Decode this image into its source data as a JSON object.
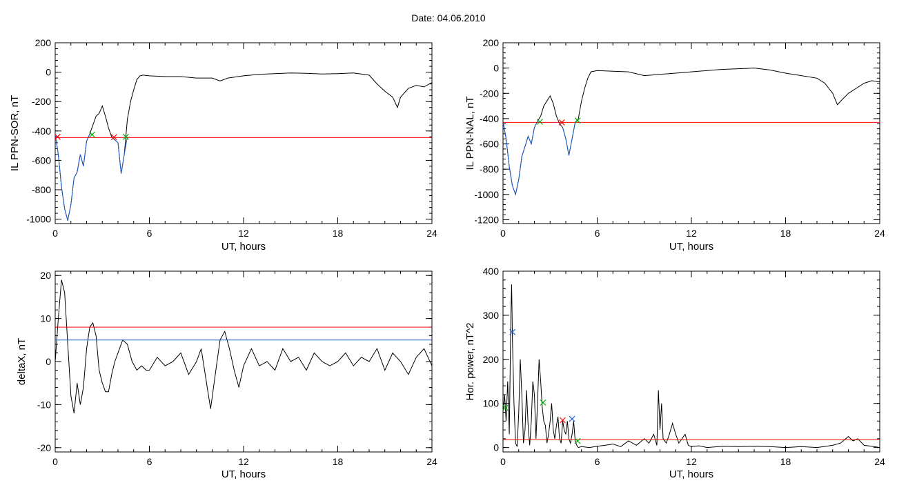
{
  "header": {
    "date_label": "Date:  04.06.2010"
  },
  "chart_data": [
    {
      "type": "line",
      "xlabel": "UT, hours",
      "ylabel": "IL PPN-SOR, nT",
      "xlim": [
        0,
        24
      ],
      "ylim": [
        -1030,
        200
      ],
      "xticks": [
        0,
        6,
        12,
        18,
        24
      ],
      "yticks": [
        -1000,
        -800,
        -600,
        -400,
        -200,
        0,
        200
      ],
      "series": [
        {
          "color": "#000000",
          "x": [
            0,
            0.2,
            0.4,
            0.6,
            0.8,
            1.0,
            1.2,
            1.4,
            1.6,
            1.8,
            2.0,
            2.2,
            2.4,
            2.6,
            2.8,
            3.0,
            3.2,
            3.4,
            3.6,
            3.8,
            4.0,
            4.2,
            4.4,
            4.6,
            4.8,
            5.0,
            5.2,
            5.4,
            5.6,
            6,
            7,
            8,
            9,
            10,
            10.5,
            11,
            12,
            13,
            14,
            15,
            16,
            17,
            18,
            19,
            20,
            20.5,
            21,
            21.5,
            21.8,
            22,
            22.5,
            23,
            23.5,
            24
          ],
          "y": [
            -420,
            -560,
            -780,
            -930,
            -1010,
            -900,
            -720,
            -680,
            -560,
            -640,
            -470,
            -420,
            -360,
            -300,
            -280,
            -230,
            -300,
            -380,
            -440,
            -460,
            -480,
            -690,
            -560,
            -320,
            -200,
            -120,
            -50,
            -25,
            -20,
            -25,
            -30,
            -30,
            -40,
            -40,
            -60,
            -40,
            -25,
            -15,
            -10,
            -5,
            -8,
            -12,
            -10,
            -5,
            -20,
            -80,
            -130,
            -170,
            -240,
            -170,
            -110,
            -90,
            -100,
            -70
          ]
        },
        {
          "color": "#1f5fd0",
          "x": [
            0,
            0.2,
            0.4,
            0.6,
            0.8,
            1.0,
            1.2,
            1.4,
            1.6,
            1.8,
            2.0,
            2.2,
            2.4
          ],
          "y": [
            -420,
            -560,
            -780,
            -930,
            -1010,
            -900,
            -720,
            -680,
            -560,
            -640,
            -470,
            -420,
            -420
          ]
        },
        {
          "color": "#1f5fd0",
          "x": [
            3.8,
            4.0,
            4.2,
            4.4,
            4.6
          ],
          "y": [
            -460,
            -480,
            -690,
            -560,
            -440
          ]
        },
        {
          "color": "#ff0000",
          "x": [
            0,
            24
          ],
          "y": [
            -445,
            -445
          ]
        }
      ],
      "markers": [
        {
          "x": 0.15,
          "y": -440,
          "color": "#ff0000"
        },
        {
          "x": 3.75,
          "y": -442,
          "color": "#ff0000"
        },
        {
          "x": 2.35,
          "y": -425,
          "color": "#00b000"
        },
        {
          "x": 4.5,
          "y": -440,
          "color": "#00b000"
        }
      ]
    },
    {
      "type": "line",
      "xlabel": "UT, hours",
      "ylabel": "IL PPN-NAL, nT",
      "xlim": [
        0,
        24
      ],
      "ylim": [
        -1230,
        200
      ],
      "xticks": [
        0,
        6,
        12,
        18,
        24
      ],
      "yticks": [
        -1200,
        -1000,
        -800,
        -600,
        -400,
        -200,
        0,
        200
      ],
      "series": [
        {
          "color": "#000000",
          "x": [
            0,
            0.2,
            0.4,
            0.6,
            0.8,
            1.0,
            1.2,
            1.4,
            1.6,
            1.8,
            2.0,
            2.2,
            2.4,
            2.6,
            2.8,
            3.0,
            3.2,
            3.4,
            3.6,
            3.8,
            4.0,
            4.2,
            4.4,
            4.6,
            4.8,
            5.0,
            5.2,
            5.4,
            5.6,
            6,
            7,
            8,
            9,
            10,
            11,
            12,
            13,
            14,
            15,
            16,
            17,
            18,
            19,
            20,
            20.5,
            21,
            21.3,
            21.6,
            22,
            22.5,
            23,
            23.5,
            24
          ],
          "y": [
            -420,
            -560,
            -780,
            -930,
            -1000,
            -880,
            -700,
            -620,
            -540,
            -600,
            -470,
            -420,
            -380,
            -300,
            -260,
            -220,
            -280,
            -380,
            -440,
            -470,
            -560,
            -690,
            -560,
            -430,
            -400,
            -260,
            -160,
            -80,
            -30,
            -20,
            -25,
            -30,
            -60,
            -50,
            -40,
            -30,
            -20,
            -10,
            -5,
            0,
            -15,
            -40,
            -60,
            -80,
            -120,
            -200,
            -290,
            -250,
            -200,
            -160,
            -120,
            -100,
            -110
          ]
        },
        {
          "color": "#1f5fd0",
          "x": [
            0,
            0.2,
            0.4,
            0.6,
            0.8,
            1.0,
            1.2,
            1.4,
            1.6,
            1.8,
            2.0,
            2.2,
            2.4
          ],
          "y": [
            -420,
            -560,
            -780,
            -930,
            -1000,
            -880,
            -700,
            -620,
            -540,
            -600,
            -470,
            -420,
            -420
          ]
        },
        {
          "color": "#1f5fd0",
          "x": [
            3.8,
            4.0,
            4.2,
            4.4,
            4.6,
            4.8
          ],
          "y": [
            -470,
            -560,
            -690,
            -560,
            -430,
            -400
          ]
        },
        {
          "color": "#ff0000",
          "x": [
            0,
            24
          ],
          "y": [
            -430,
            -430
          ]
        }
      ],
      "markers": [
        {
          "x": 3.75,
          "y": -430,
          "color": "#ff0000"
        },
        {
          "x": 2.35,
          "y": -425,
          "color": "#00b000"
        },
        {
          "x": 4.75,
          "y": -415,
          "color": "#00b000"
        }
      ]
    },
    {
      "type": "line",
      "xlabel": "UT, hours",
      "ylabel": "deltaX, nT",
      "xlim": [
        0,
        24
      ],
      "ylim": [
        -21,
        21
      ],
      "xticks": [
        0,
        6,
        12,
        18,
        24
      ],
      "yticks": [
        -20,
        -10,
        0,
        10,
        20
      ],
      "series": [
        {
          "color": "#000000",
          "x": [
            0,
            0.2,
            0.4,
            0.6,
            0.8,
            1.0,
            1.2,
            1.4,
            1.6,
            1.8,
            2.0,
            2.2,
            2.4,
            2.6,
            2.8,
            3.0,
            3.2,
            3.4,
            3.6,
            3.8,
            4.0,
            4.3,
            4.6,
            4.9,
            5.2,
            5.5,
            5.8,
            6.0,
            6.5,
            7,
            7.5,
            8,
            8.5,
            9,
            9.3,
            9.6,
            9.9,
            10.2,
            10.5,
            10.8,
            11.1,
            11.4,
            11.7,
            12,
            12.5,
            13,
            13.5,
            14,
            14.5,
            15,
            15.5,
            16,
            16.5,
            17,
            17.5,
            18,
            18.5,
            19,
            19.5,
            20,
            20.5,
            21,
            21.5,
            22,
            22.5,
            23,
            23.5,
            24
          ],
          "y": [
            0,
            10,
            19,
            16,
            4,
            -8,
            -12,
            -5,
            -10,
            -6,
            3,
            8,
            9,
            6,
            -2,
            -5,
            -7,
            -7,
            -3,
            0,
            2,
            5,
            4,
            0,
            -2,
            -1,
            -2,
            -2,
            1,
            -1,
            0,
            2,
            -3,
            0,
            3,
            -4,
            -11,
            -3,
            5,
            7,
            3,
            -2,
            -6,
            -1,
            3,
            -1,
            0,
            -2,
            3,
            0,
            1,
            -2,
            2,
            0,
            -1,
            0,
            2,
            -1,
            1,
            0,
            3,
            -2,
            2,
            0,
            -3,
            1,
            3,
            -1
          ]
        },
        {
          "color": "#ff0000",
          "x": [
            0,
            24
          ],
          "y": [
            8,
            8
          ]
        },
        {
          "color": "#1f5fd0",
          "x": [
            0,
            24
          ],
          "y": [
            5,
            5
          ]
        }
      ],
      "markers": []
    },
    {
      "type": "line",
      "xlabel": "UT, hours",
      "ylabel": "Hor. power, nT^2",
      "xlim": [
        0,
        24
      ],
      "ylim": [
        -10,
        400
      ],
      "xticks": [
        0,
        6,
        12,
        18,
        24
      ],
      "yticks": [
        0,
        100,
        200,
        300,
        400
      ],
      "series": [
        {
          "color": "#000000",
          "x": [
            0,
            0.1,
            0.2,
            0.3,
            0.4,
            0.5,
            0.55,
            0.6,
            0.7,
            0.8,
            0.9,
            1.0,
            1.1,
            1.2,
            1.3,
            1.4,
            1.5,
            1.6,
            1.7,
            1.8,
            1.9,
            2.0,
            2.1,
            2.2,
            2.3,
            2.4,
            2.5,
            2.6,
            2.7,
            2.8,
            2.9,
            3.0,
            3.1,
            3.2,
            3.3,
            3.4,
            3.5,
            3.6,
            3.7,
            3.8,
            3.9,
            4.0,
            4.1,
            4.2,
            4.3,
            4.4,
            4.5,
            4.6,
            4.7,
            4.8,
            5.0,
            5.5,
            6,
            6.5,
            7,
            7.5,
            8,
            8.5,
            9,
            9.3,
            9.6,
            9.8,
            9.9,
            10.0,
            10.1,
            10.2,
            10.4,
            10.6,
            10.8,
            11.0,
            11.2,
            11.4,
            11.6,
            11.8,
            12.0,
            12.5,
            13,
            14,
            15,
            16,
            17,
            18,
            19,
            20,
            21,
            21.5,
            22,
            22.3,
            22.6,
            23,
            23.5,
            24
          ],
          "y": [
            80,
            120,
            60,
            150,
            30,
            300,
            370,
            250,
            100,
            10,
            2,
            80,
            200,
            120,
            10,
            40,
            130,
            50,
            5,
            60,
            150,
            120,
            20,
            100,
            200,
            150,
            90,
            60,
            50,
            10,
            30,
            60,
            100,
            40,
            20,
            50,
            70,
            20,
            10,
            60,
            40,
            30,
            60,
            20,
            10,
            30,
            60,
            15,
            5,
            0,
            2,
            0,
            3,
            5,
            8,
            2,
            15,
            5,
            20,
            10,
            30,
            5,
            130,
            40,
            100,
            20,
            10,
            30,
            55,
            30,
            10,
            20,
            30,
            5,
            2,
            4,
            0,
            3,
            2,
            3,
            2,
            0,
            2,
            0,
            5,
            10,
            25,
            15,
            20,
            5,
            3,
            0
          ]
        },
        {
          "color": "#ff0000",
          "x": [
            0,
            24
          ],
          "y": [
            18,
            18
          ]
        }
      ],
      "markers": [
        {
          "x": 0.6,
          "y": 262,
          "color": "#1f5fd0"
        },
        {
          "x": 4.4,
          "y": 65,
          "color": "#1f5fd0"
        },
        {
          "x": 3.8,
          "y": 62,
          "color": "#ff0000"
        },
        {
          "x": 0.15,
          "y": 90,
          "color": "#00b000"
        },
        {
          "x": 2.55,
          "y": 102,
          "color": "#00b000"
        },
        {
          "x": 4.75,
          "y": 15,
          "color": "#00b000"
        }
      ]
    }
  ]
}
